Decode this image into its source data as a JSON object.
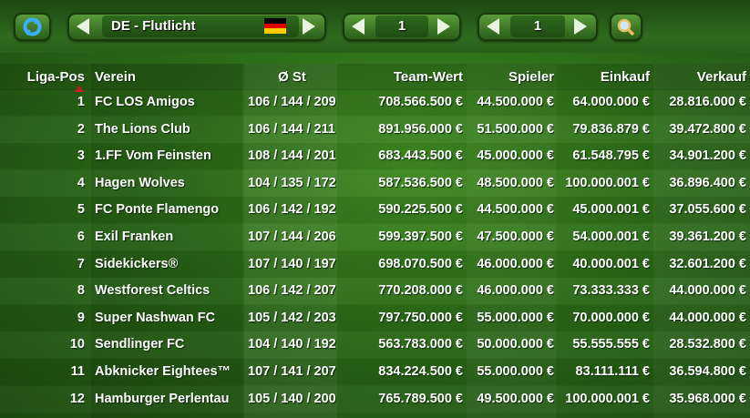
{
  "toolbar": {
    "league": "DE - Flutlicht",
    "selector_1": "1",
    "selector_2": "1"
  },
  "table": {
    "headers": [
      "Liga-Pos",
      "Verein",
      "Ø St",
      "Team-Wert",
      "Spieler",
      "Einkauf",
      "Verkauf"
    ],
    "rows": [
      [
        "1",
        "FC LOS Amigos",
        "106 / 144 / 209",
        "708.566.500 €",
        "44.500.000 €",
        "64.000.000 €",
        "28.816.000 €"
      ],
      [
        "2",
        "The Lions Club",
        "106 / 144 / 211",
        "891.956.000 €",
        "51.500.000 €",
        "79.836.879 €",
        "39.472.800 €"
      ],
      [
        "3",
        "1.FF Vom Feinsten",
        "108 / 144 / 201",
        "683.443.500 €",
        "45.000.000 €",
        "61.548.795 €",
        "34.901.200 €"
      ],
      [
        "4",
        "Hagen Wolves",
        "104 / 135 / 172",
        "587.536.500 €",
        "48.500.000 €",
        "100.000.001 €",
        "36.896.400 €"
      ],
      [
        "5",
        "FC Ponte Flamengo",
        "106 / 142 / 192",
        "590.225.500 €",
        "44.500.000 €",
        "45.000.001 €",
        "37.055.600 €"
      ],
      [
        "6",
        "Exil Franken",
        "107 / 144 / 206",
        "599.397.500 €",
        "47.500.000 €",
        "54.000.001 €",
        "39.361.200 €"
      ],
      [
        "7",
        "Sidekickers®",
        "107 / 140 / 197",
        "698.070.500 €",
        "46.000.000 €",
        "40.000.001 €",
        "32.601.200 €"
      ],
      [
        "8",
        "Westforest Celtics",
        "106 / 142 / 207",
        "770.208.000 €",
        "46.000.000 €",
        "73.333.333 €",
        "44.000.000 €"
      ],
      [
        "9",
        "Super Nashwan FC",
        "105 / 142 / 203",
        "797.750.000 €",
        "55.000.000 €",
        "70.000.000 €",
        "44.000.000 €"
      ],
      [
        "10",
        "Sendlinger FC",
        "104 / 140 / 192",
        "563.783.000 €",
        "50.000.000 €",
        "55.555.555 €",
        "28.532.800 €"
      ],
      [
        "11",
        "Abknicker Eightees™",
        "107 / 141 / 207",
        "834.224.500 €",
        "55.000.000 €",
        "83.111.111 €",
        "36.594.800 €"
      ],
      [
        "12",
        "Hamburger Perlentau",
        "105 / 140 / 200",
        "765.789.500 €",
        "49.500.000 €",
        "100.000.001 €",
        "35.968.000 €"
      ]
    ]
  }
}
